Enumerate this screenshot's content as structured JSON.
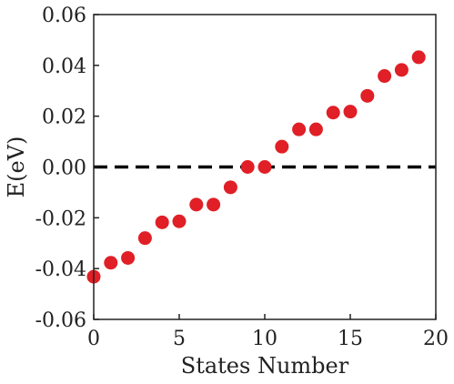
{
  "chart_data": {
    "type": "scatter",
    "xlabel": "States Number",
    "ylabel": "E(eV)",
    "xlim": [
      0,
      20
    ],
    "ylim": [
      -0.06,
      0.06
    ],
    "x_ticks": [
      0,
      5,
      10,
      15,
      20
    ],
    "x_tick_labels": [
      "0",
      "5",
      "10",
      "15",
      "20"
    ],
    "y_ticks": [
      -0.06,
      -0.04,
      -0.02,
      0.0,
      0.02,
      0.04,
      0.06
    ],
    "y_tick_labels": [
      "-0.06",
      "-0.04",
      "-0.02",
      "0.00",
      "0.02",
      "0.04",
      "0.06"
    ],
    "grid": false,
    "legend": "none",
    "reference_line": {
      "y": 0.0,
      "style": "dashed",
      "color": "#000000"
    },
    "marker_color": "#e01f26",
    "series": [
      {
        "x": [
          0,
          1,
          2,
          3,
          4,
          5,
          6,
          7,
          8,
          9,
          10,
          11,
          12,
          13,
          14,
          15,
          16,
          17,
          18,
          19
        ],
        "values": [
          -0.0432,
          -0.0377,
          -0.0358,
          -0.028,
          -0.0218,
          -0.0214,
          -0.0148,
          -0.0148,
          -0.008,
          0.0,
          0.0,
          0.008,
          0.0148,
          0.0148,
          0.0214,
          0.0218,
          0.028,
          0.0358,
          0.0382,
          0.0432
        ]
      }
    ]
  }
}
